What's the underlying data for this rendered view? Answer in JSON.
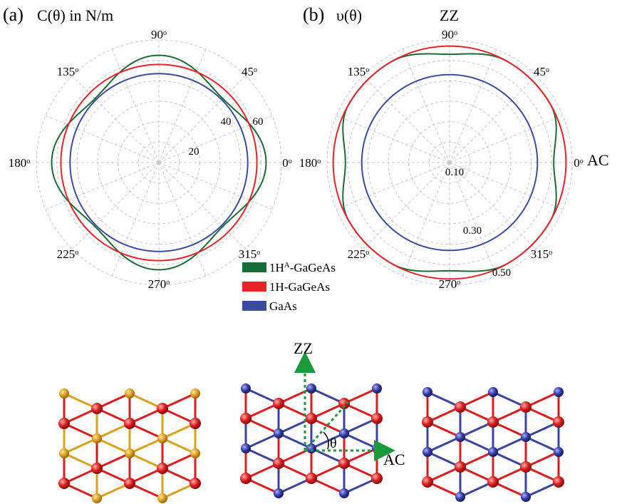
{
  "colors": {
    "series_1HA": "#1a6b35",
    "series_1H": "#e8242a",
    "series_GaAs": "#3a4ca0",
    "grid": "#c8c8c8",
    "axis_arrow": "#1a9a3a",
    "atom_orange": "#e0a020",
    "atom_red": "#dd1f1f",
    "atom_blue": "#3840a8"
  },
  "panel_a": {
    "label": "(a)",
    "title": "C(θ) in N/m",
    "angle_labels": [
      "0",
      "45",
      "90",
      "135",
      "180",
      "225",
      "270",
      "315"
    ],
    "radial_labels": [
      "20",
      "40",
      "60"
    ]
  },
  "panel_b": {
    "label": "(b)",
    "title": "υ(θ)",
    "zz_label": "ZZ",
    "ac_label": "AC",
    "angle_labels": [
      "0",
      "45",
      "90",
      "135",
      "180",
      "225",
      "270",
      "315"
    ],
    "radial_labels": [
      "0.10",
      "0.30",
      "0.50"
    ]
  },
  "degree_mark": "o",
  "legend": {
    "items": [
      {
        "prefix": "1H",
        "sup": "A",
        "suffix": "-GaGeAs",
        "color_key": "series_1HA"
      },
      {
        "prefix": "1H-GaGeAs",
        "sup": "",
        "suffix": "",
        "color_key": "series_1H"
      },
      {
        "prefix": "GaAs",
        "sup": "",
        "suffix": "",
        "color_key": "series_GaAs"
      }
    ]
  },
  "structure": {
    "zz_label": "ZZ",
    "ac_label": "AC",
    "theta_label": "θ"
  },
  "chart_data": [
    {
      "type": "polar-line",
      "title": "C(θ) in N/m",
      "theta_unit": "degrees",
      "r_max": 80,
      "r_ticks": [
        20,
        40,
        60
      ],
      "grid": true,
      "series": [
        {
          "name": "1HA-GaGeAs",
          "theta": [
            0,
            45,
            90,
            135,
            180,
            225,
            270,
            315
          ],
          "r": [
            70,
            59,
            70,
            59,
            70,
            59,
            70,
            59
          ]
        },
        {
          "name": "1H-GaGeAs",
          "theta": [
            0,
            45,
            90,
            135,
            180,
            225,
            270,
            315
          ],
          "r": [
            64,
            64,
            64,
            64,
            64,
            64,
            64,
            64
          ]
        },
        {
          "name": "GaAs",
          "theta": [
            0,
            45,
            90,
            135,
            180,
            225,
            270,
            315
          ],
          "r": [
            58,
            58,
            58,
            58,
            58,
            58,
            58,
            58
          ]
        }
      ]
    },
    {
      "type": "polar-line",
      "title": "υ(θ)",
      "theta_unit": "degrees",
      "r_max": 0.6,
      "r_ticks": [
        0.1,
        0.3,
        0.5
      ],
      "grid": true,
      "series": [
        {
          "name": "1HA-GaGeAs",
          "theta": [
            0,
            30,
            60,
            90,
            120,
            150,
            180,
            210,
            240,
            270,
            300,
            330
          ],
          "r": [
            0.51,
            0.57,
            0.57,
            0.53,
            0.57,
            0.57,
            0.51,
            0.57,
            0.57,
            0.53,
            0.57,
            0.57
          ]
        },
        {
          "name": "1H-GaGeAs",
          "theta": [
            0,
            45,
            90,
            135,
            180,
            225,
            270,
            315
          ],
          "r": [
            0.57,
            0.57,
            0.57,
            0.57,
            0.57,
            0.57,
            0.57,
            0.57
          ]
        },
        {
          "name": "GaAs",
          "theta": [
            0,
            45,
            90,
            135,
            180,
            225,
            270,
            315
          ],
          "r": [
            0.43,
            0.43,
            0.43,
            0.43,
            0.43,
            0.43,
            0.43,
            0.43
          ]
        }
      ]
    }
  ]
}
